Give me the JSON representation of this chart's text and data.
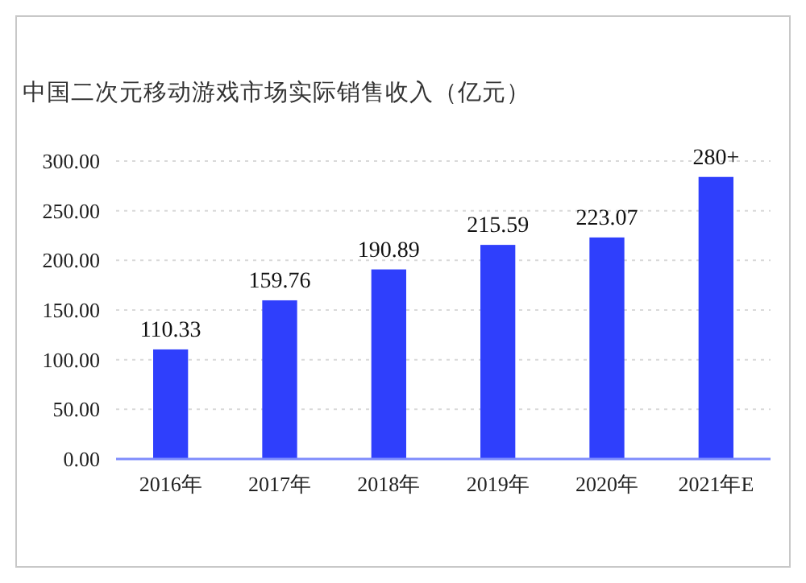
{
  "chart_data": {
    "type": "bar",
    "title": "中国二次元移动游戏市场实际销售收入（亿元）",
    "categories": [
      "2016年",
      "2017年",
      "2018年",
      "2019年",
      "2020年",
      "2021年E"
    ],
    "values": [
      110.33,
      159.76,
      190.89,
      215.59,
      223.07,
      284
    ],
    "value_labels": [
      "110.33",
      "159.76",
      "190.89",
      "215.59",
      "223.07",
      "280+"
    ],
    "color": "#2f3ffc",
    "ylim": [
      0,
      300
    ],
    "yticks": [
      {
        "value": 0,
        "label": "0.00"
      },
      {
        "value": 50,
        "label": "50.00"
      },
      {
        "value": 100,
        "label": "100.00"
      },
      {
        "value": 150,
        "label": "150.00"
      },
      {
        "value": 200,
        "label": "200.00"
      },
      {
        "value": 250,
        "label": "250.00"
      },
      {
        "value": 300,
        "label": "300.00"
      }
    ],
    "grid": "y"
  }
}
